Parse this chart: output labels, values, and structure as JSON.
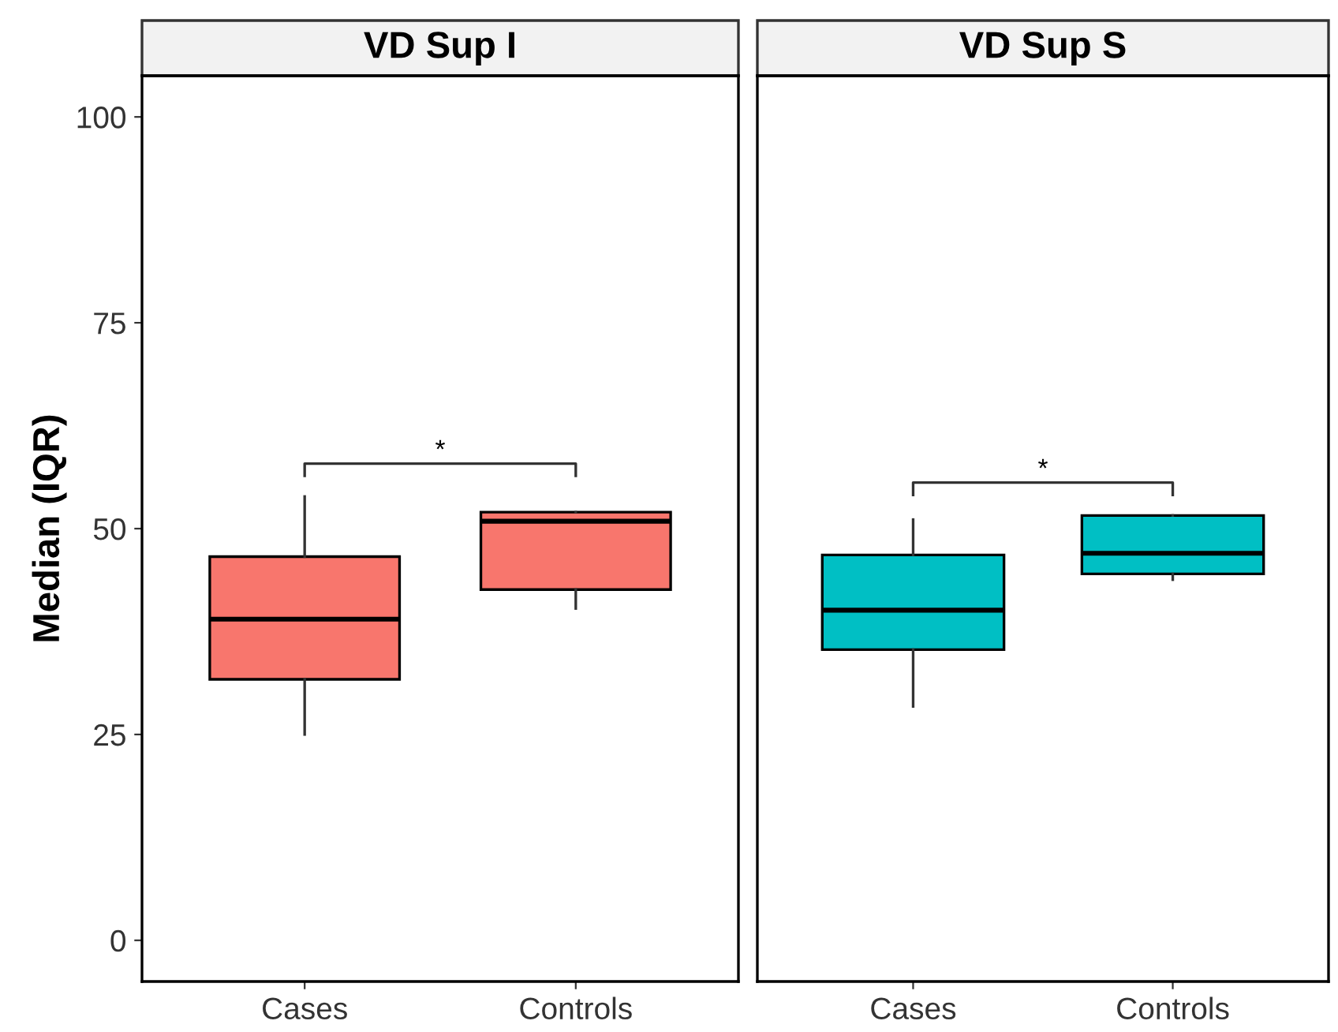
{
  "chart_data": [
    {
      "type": "box",
      "title": "VD Sup I",
      "ylabel": "Median (IQR)",
      "categories": [
        "Cases",
        "Controls"
      ],
      "color": "#f8766d",
      "boxes": [
        {
          "low": 25.0,
          "q1": 31.7,
          "median": 39.0,
          "q3": 46.6,
          "high": 53.9
        },
        {
          "low": 40.3,
          "q1": 42.6,
          "median": 50.9,
          "q3": 52.0,
          "high": 52.0
        }
      ],
      "ylim": [
        -5,
        105
      ],
      "yticks": [
        0,
        25,
        50,
        75,
        100
      ],
      "grid": false,
      "legend": false,
      "annotations": [
        "*"
      ]
    },
    {
      "type": "box",
      "title": "VD Sup S",
      "categories": [
        "Cases",
        "Controls"
      ],
      "color": "#00bfc4",
      "boxes": [
        {
          "low": 28.4,
          "q1": 35.3,
          "median": 40.1,
          "q3": 46.8,
          "high": 51.1
        },
        {
          "low": 43.8,
          "q1": 44.5,
          "median": 47.0,
          "q3": 51.6,
          "high": 51.6
        }
      ],
      "ylim": [
        -5,
        105
      ],
      "yticks": [
        0,
        25,
        50,
        75,
        100
      ],
      "grid": false,
      "legend": false,
      "tick_labels": "x",
      "annotations": [
        "*"
      ]
    }
  ]
}
